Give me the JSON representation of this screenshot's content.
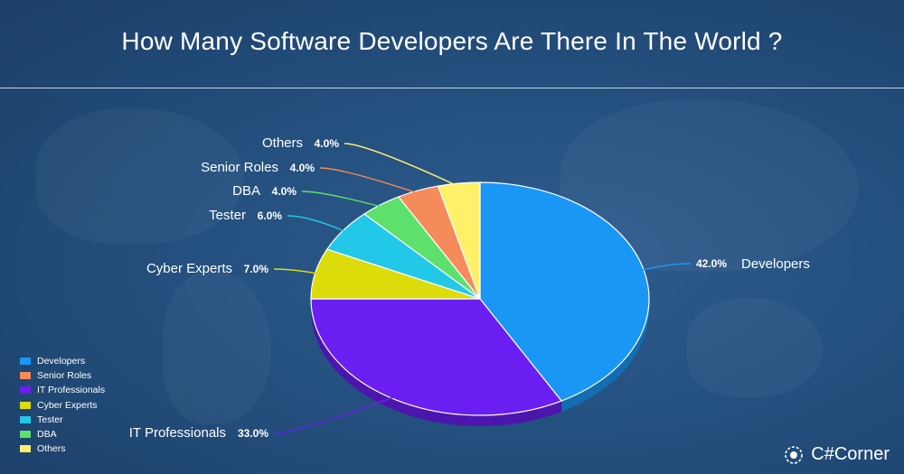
{
  "title": "How Many Software Developers Are There In The World ?",
  "brand": {
    "name": "C#Corner",
    "icon": "corner-logo-icon"
  },
  "chart_data": {
    "type": "pie",
    "title": "How Many Software Developers Are There In The World ?",
    "slices": [
      {
        "label": "Developers",
        "value": 42.0,
        "pct_text": "42.0%",
        "color": "#1a97f5"
      },
      {
        "label": "IT Professionals",
        "value": 33.0,
        "pct_text": "33.0%",
        "color": "#6a1ef2"
      },
      {
        "label": "Cyber Experts",
        "value": 7.0,
        "pct_text": "7.0%",
        "color": "#dcdc0a"
      },
      {
        "label": "Tester",
        "value": 6.0,
        "pct_text": "6.0%",
        "color": "#21c8e8"
      },
      {
        "label": "DBA",
        "value": 4.0,
        "pct_text": "4.0%",
        "color": "#5ee06c"
      },
      {
        "label": "Senior Roles",
        "value": 4.0,
        "pct_text": "4.0%",
        "color": "#f58a5a"
      },
      {
        "label": "Others",
        "value": 4.0,
        "pct_text": "4.0%",
        "color": "#fff06a"
      }
    ],
    "legend": {
      "placement": "bottom-left",
      "entries": [
        {
          "label": "Developers",
          "color": "#1a97f5"
        },
        {
          "label": "Senior Roles",
          "color": "#f58a5a"
        },
        {
          "label": "IT Professionals",
          "color": "#6a1ef2"
        },
        {
          "label": "Cyber Experts",
          "color": "#dcdc0a"
        },
        {
          "label": "Tester",
          "color": "#21c8e8"
        },
        {
          "label": "DBA",
          "color": "#5ee06c"
        },
        {
          "label": "Others",
          "color": "#fff06a"
        }
      ]
    }
  }
}
